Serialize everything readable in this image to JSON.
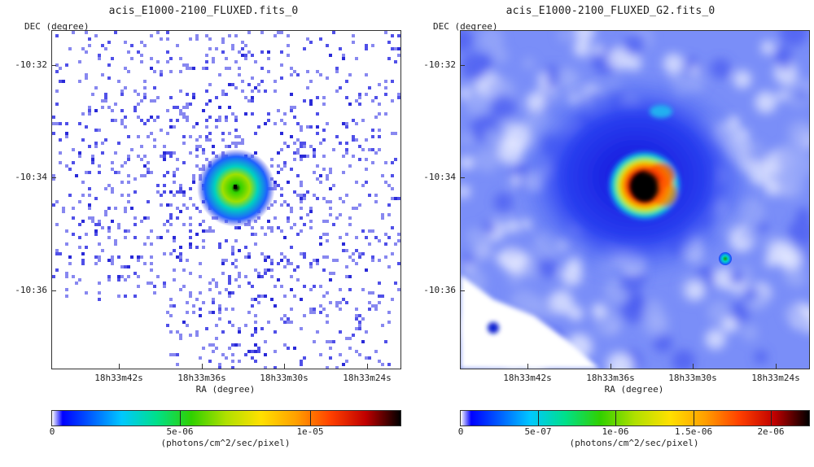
{
  "left_panel": {
    "title": "acis_E1000-2100_FLUXED.fits_0",
    "dec_label": "DEC (degree)",
    "y_ticks": [
      "-10:32",
      "-10:34",
      "-10:36"
    ],
    "x_ticks": [
      "18h33m42s",
      "18h33m36s",
      "18h33m30s",
      "18h33m24s"
    ],
    "ra_label": "RA (degree)",
    "colorbar": {
      "labels": [
        "0",
        "5e-06",
        "1e-05"
      ],
      "unit": "(photons/cm^2/sec/pixel)"
    }
  },
  "right_panel": {
    "title": "acis_E1000-2100_FLUXED_G2.fits_0",
    "dec_label": "DEC (degree)",
    "y_ticks": [
      "-10:32",
      "-10:34",
      "-10:36"
    ],
    "x_ticks": [
      "18h33m42s",
      "18h33m36s",
      "18h33m30s",
      "18h33m24s"
    ],
    "ra_label": "RA (degree)",
    "colorbar": {
      "labels": [
        "0",
        "5e-07",
        "1e-06",
        "1.5e-06",
        "2e-06"
      ],
      "unit": "(photons/cm^2/sec/pixel)"
    }
  },
  "colors": {
    "low": "#3333ee",
    "mid": "#00c8ff",
    "high": "#ff4000",
    "peak": "#000000"
  }
}
